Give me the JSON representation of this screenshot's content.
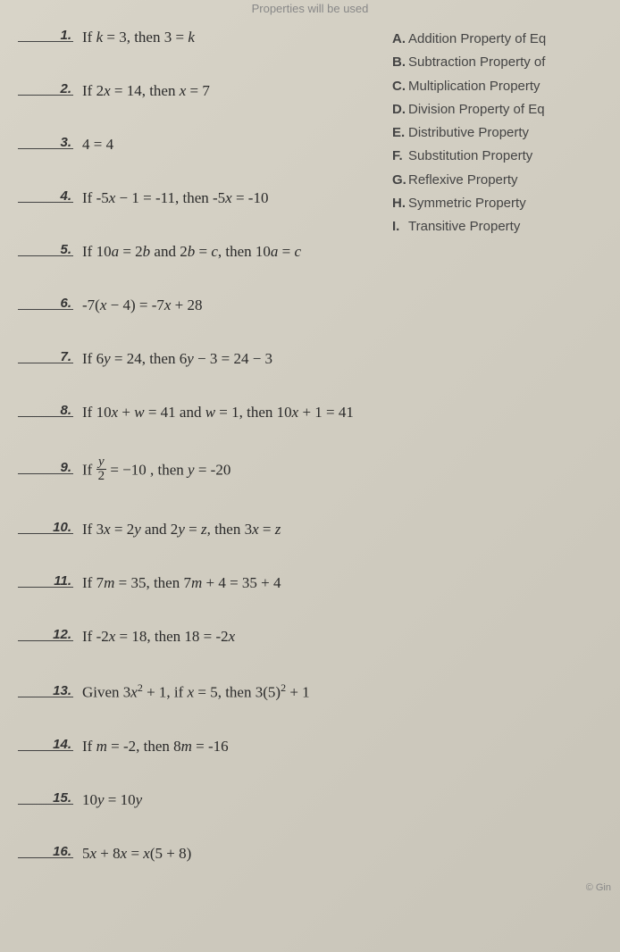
{
  "header": "Properties will be used",
  "questions": [
    {
      "num": "1.",
      "text": "If <i>k</i> = 3, then 3 = <i>k</i>"
    },
    {
      "num": "2.",
      "text": "If 2<i>x</i> = 14, then <i>x</i> = 7"
    },
    {
      "num": "3.",
      "text": "4 = 4"
    },
    {
      "num": "4.",
      "text": "If -5<i>x</i> − 1 = -11, then -5<i>x</i> = -10"
    },
    {
      "num": "5.",
      "text": "If 10<i>a</i> = 2<i>b</i> and 2<i>b</i> = <i>c</i>, then 10<i>a</i> = <i>c</i>"
    },
    {
      "num": "6.",
      "text": "-7(<i>x</i> − 4) = -7<i>x</i> + 28"
    },
    {
      "num": "7.",
      "text": "If 6<i>y</i> = 24, then 6<i>y</i> − 3 = 24 − 3"
    },
    {
      "num": "8.",
      "text": "If 10<i>x</i> + <i>w</i> = 41 and <i>w</i> = 1, then 10<i>x</i> + 1 = 41"
    },
    {
      "num": "9.",
      "text": "If <span class=\"frac\"><span class=\"num\"><i>y</i></span><span class=\"den\">2</span></span> = −10 , then <i>y</i> = -20"
    },
    {
      "num": "10.",
      "text": "If 3<i>x</i> = 2<i>y</i> and 2<i>y</i> = <i>z</i>, then 3<i>x</i> = <i>z</i>"
    },
    {
      "num": "11.",
      "text": "If 7<i>m</i> = 35, then 7<i>m</i> + 4 = 35 + 4"
    },
    {
      "num": "12.",
      "text": "If -2<i>x</i> = 18, then 18 = -2<i>x</i>"
    },
    {
      "num": "13.",
      "text": "Given 3<i>x</i><sup>2</sup> + 1, if <i>x</i> = 5, then 3(5)<sup>2</sup> + 1"
    },
    {
      "num": "14.",
      "text": "If <i>m</i> = -2, then 8<i>m</i> = -16"
    },
    {
      "num": "15.",
      "text": "10<i>y</i> = 10<i>y</i>"
    },
    {
      "num": "16.",
      "text": "5<i>x</i> + 8<i>x</i> = <i>x</i>(5 + 8)"
    }
  ],
  "options": [
    {
      "letter": "A.",
      "label": "Addition Property of Eq"
    },
    {
      "letter": "B.",
      "label": "Subtraction Property of"
    },
    {
      "letter": "C.",
      "label": "Multiplication Property"
    },
    {
      "letter": "D.",
      "label": "Division Property of Eq"
    },
    {
      "letter": "E.",
      "label": "Distributive Property"
    },
    {
      "letter": "F.",
      "label": "Substitution Property"
    },
    {
      "letter": "G.",
      "label": "Reflexive Property"
    },
    {
      "letter": "H.",
      "label": "Symmetric Property"
    },
    {
      "letter": "I.",
      "label": "Transitive Property"
    }
  ],
  "footer": "© Gin"
}
